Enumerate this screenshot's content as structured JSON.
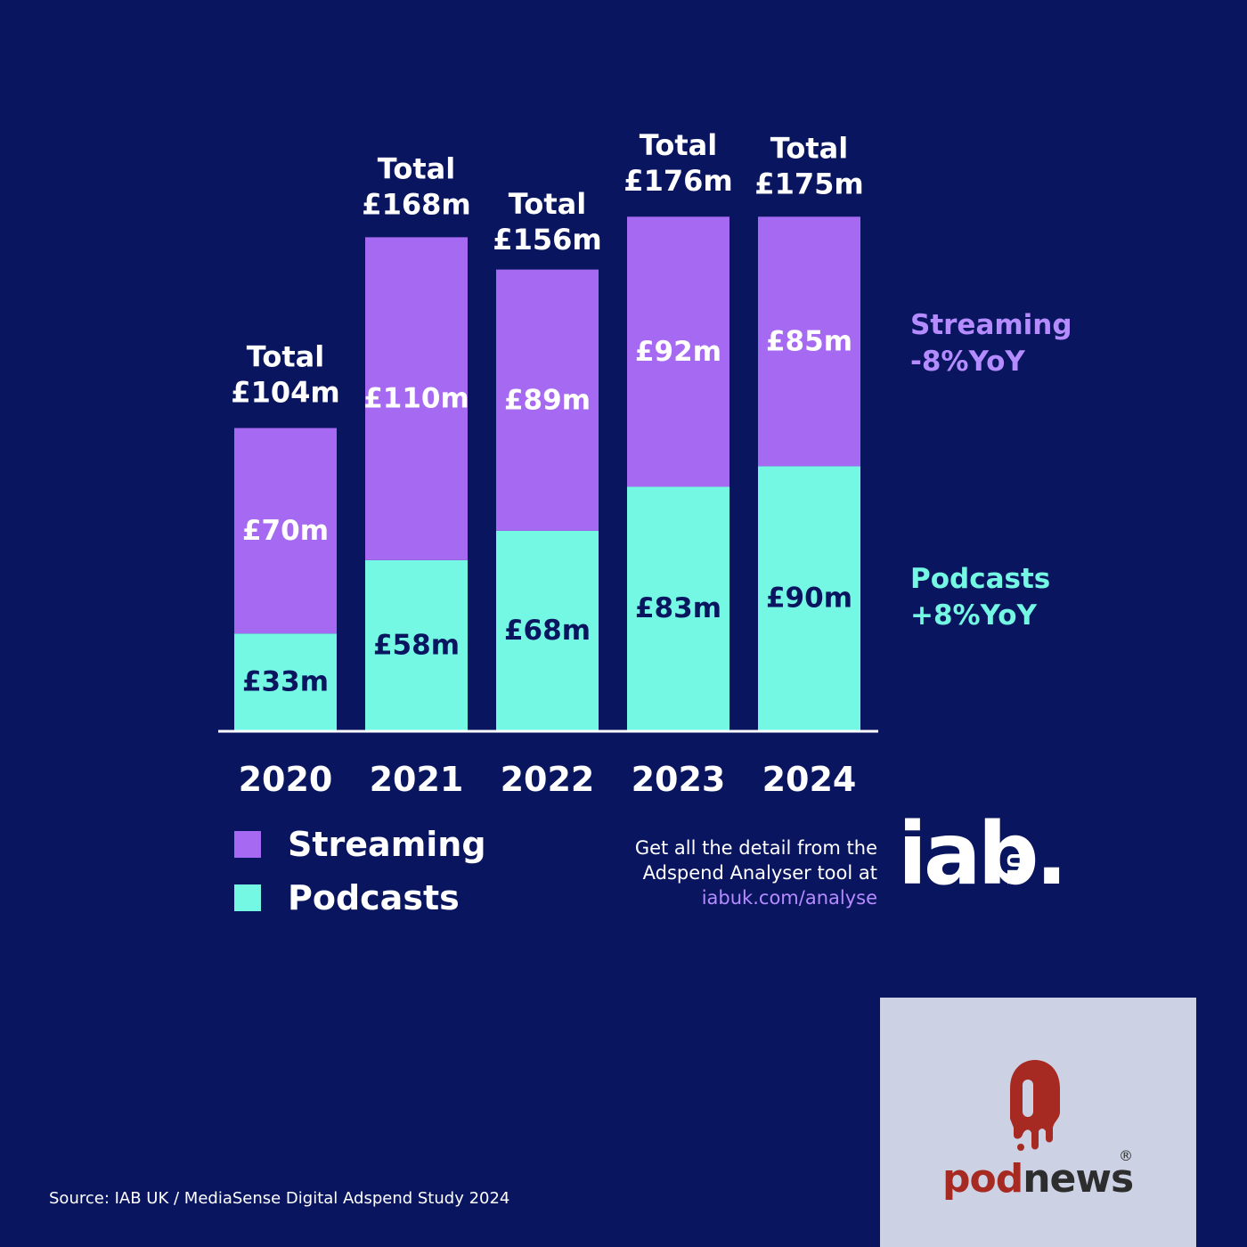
{
  "chart_data": {
    "type": "bar",
    "stacked": true,
    "categories": [
      "2020",
      "2021",
      "2022",
      "2023",
      "2024"
    ],
    "series": [
      {
        "name": "Podcasts",
        "values": [
          33,
          58,
          68,
          83,
          90
        ],
        "labels": [
          "£33m",
          "£58m",
          "£68m",
          "£83m",
          "£90m"
        ],
        "color": "#74f8e3",
        "label_color": "#0a1560"
      },
      {
        "name": "Streaming",
        "values": [
          70,
          110,
          89,
          92,
          85
        ],
        "labels": [
          "£70m",
          "£110m",
          "£89m",
          "£92m",
          "£85m"
        ],
        "color": "#a66af2",
        "label_color": "#ffffff"
      }
    ],
    "total_values": [
      104,
      168,
      156,
      176,
      175
    ],
    "totals": [
      [
        "Total",
        "£104m"
      ],
      [
        "Total",
        "£168m"
      ],
      [
        "Total",
        "£156m"
      ],
      [
        "Total",
        "£176m"
      ],
      [
        "Total",
        "£175m"
      ]
    ],
    "ylim": [
      0,
      180
    ],
    "grid": false,
    "legend_position": "bottom-left"
  },
  "legend": {
    "items": [
      {
        "label": "Streaming",
        "color": "#a66af2"
      },
      {
        "label": "Podcasts",
        "color": "#74f8e3"
      }
    ]
  },
  "annotations": {
    "streaming": {
      "line1": "Streaming",
      "line2": "-8%YoY",
      "color": "#b58cff"
    },
    "podcasts": {
      "line1": "Podcasts",
      "line2": "+8%YoY",
      "color": "#74f8e3"
    }
  },
  "promo": {
    "line1": "Get all the detail from the",
    "line2": "Adspend Analyser tool at",
    "link": "iabuk.com/analyse"
  },
  "iab_logo": {
    "text": "iab.",
    "suffix": "UK"
  },
  "podnews_logo": {
    "part1": "pod",
    "part2": "news",
    "reg": "®"
  },
  "source": "Source: IAB UK / MediaSense Digital Adspend Study 2024"
}
